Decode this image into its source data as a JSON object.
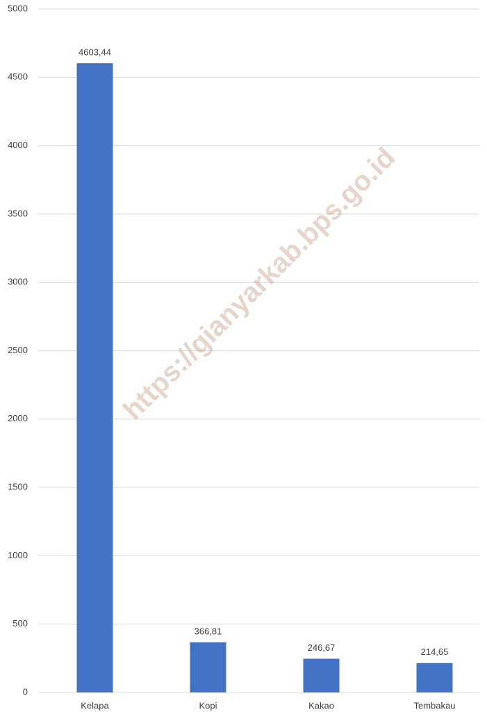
{
  "chart_data": {
    "type": "bar",
    "categories": [
      "Kelapa",
      "Kopi",
      "Kakao",
      "Tembakau"
    ],
    "values": [
      4603.44,
      366.81,
      246.67,
      214.65
    ],
    "value_labels": [
      "4603,44",
      "366,81",
      "246,67",
      "214,65"
    ],
    "color": "#4472c4",
    "ylim": [
      0,
      5000
    ],
    "yticks": [
      0,
      500,
      1000,
      1500,
      2000,
      2500,
      3000,
      3500,
      4000,
      4500,
      5000
    ],
    "grid": true,
    "watermark": "https://gianyarkab.bps.go.id"
  }
}
